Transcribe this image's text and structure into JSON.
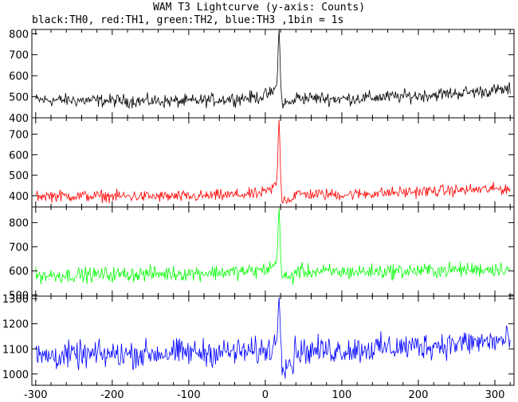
{
  "title": "WAM T3 Lightcurve (y-axis: Counts)",
  "subtitle": "black:TH0, red:TH1, green:TH2, blue:TH3 ,1bin = 1s",
  "chart_data": {
    "type": "line",
    "xlim": [
      -305,
      325
    ],
    "xticks": [
      -300,
      -200,
      -100,
      0,
      100,
      200,
      300
    ],
    "panels": [
      {
        "name": "TH0",
        "color": "#000000",
        "ylim": [
          400,
          820
        ],
        "yticks": [
          400,
          500,
          600,
          700,
          800
        ],
        "baseline": [
          [
            -300,
            485
          ],
          [
            -100,
            478
          ],
          [
            0,
            500
          ],
          [
            100,
            490
          ],
          [
            200,
            505
          ],
          [
            320,
            535
          ]
        ],
        "noise": 22,
        "peak": {
          "x": 18,
          "y": 820
        }
      },
      {
        "name": "TH1",
        "color": "#ff0000",
        "ylim": [
          345,
          780
        ],
        "yticks": [
          400,
          500,
          600,
          700
        ],
        "baseline": [
          [
            -300,
            400
          ],
          [
            -100,
            395
          ],
          [
            0,
            410
          ],
          [
            100,
            405
          ],
          [
            200,
            420
          ],
          [
            320,
            435
          ]
        ],
        "noise": 20,
        "peak": {
          "x": 18,
          "y": 770
        }
      },
      {
        "name": "TH2",
        "color": "#00ff00",
        "ylim": [
          495,
          865
        ],
        "yticks": [
          500,
          600,
          700,
          800
        ],
        "baseline": [
          [
            -300,
            580
          ],
          [
            -100,
            590
          ],
          [
            0,
            600
          ],
          [
            100,
            595
          ],
          [
            200,
            600
          ],
          [
            320,
            610
          ]
        ],
        "noise": 22,
        "peak": {
          "x": 18,
          "y": 860
        }
      },
      {
        "name": "TH3",
        "color": "#0000ff",
        "ylim": [
          955,
          1310
        ],
        "yticks": [
          1000,
          1100,
          1200,
          1300
        ],
        "baseline": [
          [
            -300,
            1070
          ],
          [
            -100,
            1085
          ],
          [
            0,
            1090
          ],
          [
            100,
            1095
          ],
          [
            200,
            1110
          ],
          [
            320,
            1135
          ]
        ],
        "noise": 38,
        "peak": {
          "x": 18,
          "y": 1305
        }
      }
    ]
  }
}
